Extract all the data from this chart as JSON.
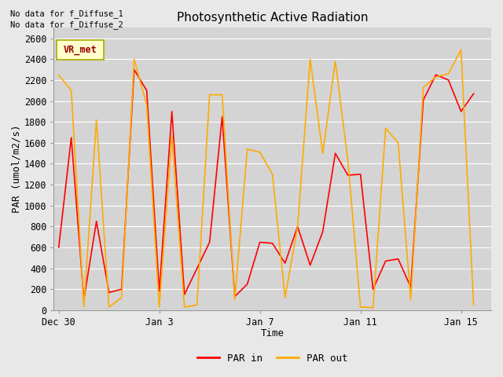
{
  "title": "Photosynthetic Active Radiation",
  "xlabel": "Time",
  "ylabel": "PAR (umol/m2/s)",
  "top_text": [
    "No data for f_Diffuse_1",
    "No data for f_Diffuse_2"
  ],
  "legend_label": "VR_met",
  "legend_entries": [
    "PAR in",
    "PAR out"
  ],
  "legend_colors": [
    "#ff0000",
    "#ffaa00"
  ],
  "fig_bg_color": "#e8e8e8",
  "plot_bg_color": "#d4d4d4",
  "ylim": [
    0,
    2700
  ],
  "yticks": [
    0,
    200,
    400,
    600,
    800,
    1000,
    1200,
    1400,
    1600,
    1800,
    2000,
    2200,
    2400,
    2600
  ],
  "x_tick_labels": [
    "Dec 30",
    "Jan 3",
    "Jan 7",
    "Jan 11",
    "Jan 15"
  ],
  "x_tick_positions": [
    0,
    4,
    8,
    12,
    16
  ],
  "par_in_x": [
    0,
    0.5,
    1,
    1.5,
    2,
    2.5,
    3,
    3.5,
    4,
    4.5,
    5,
    5.5,
    6,
    6.5,
    7,
    7.5,
    8,
    8.5,
    9,
    9.5,
    10,
    10.5,
    11,
    11.5,
    12,
    12.5,
    13,
    13.5,
    14,
    14.5,
    15,
    15.5,
    16,
    16.5
  ],
  "par_in_y": [
    600,
    1650,
    100,
    850,
    170,
    200,
    2300,
    2100,
    180,
    1900,
    150,
    400,
    650,
    1850,
    130,
    250,
    650,
    640,
    450,
    800,
    430,
    750,
    1500,
    1290,
    1300,
    200,
    470,
    490,
    220,
    2010,
    2250,
    2200,
    1900,
    2070
  ],
  "par_out_x": [
    0,
    0.5,
    1,
    1.5,
    2,
    2.5,
    3,
    3.5,
    4,
    4.5,
    5,
    5.5,
    6,
    6.5,
    7,
    7.5,
    8,
    8.5,
    9,
    9.5,
    10,
    10.5,
    11,
    11.5,
    12,
    12.5,
    13,
    13.5,
    14,
    14.5,
    15,
    15.5,
    16,
    16.5
  ],
  "par_out_y": [
    2250,
    2100,
    30,
    1820,
    30,
    120,
    2400,
    1960,
    30,
    1670,
    30,
    50,
    2060,
    2060,
    100,
    1540,
    1510,
    1300,
    120,
    800,
    2400,
    1500,
    2380,
    1430,
    30,
    25,
    1740,
    1600,
    100,
    2130,
    2230,
    2260,
    2490,
    50
  ],
  "line_width": 1.2,
  "xlim": [
    -0.2,
    17.2
  ]
}
